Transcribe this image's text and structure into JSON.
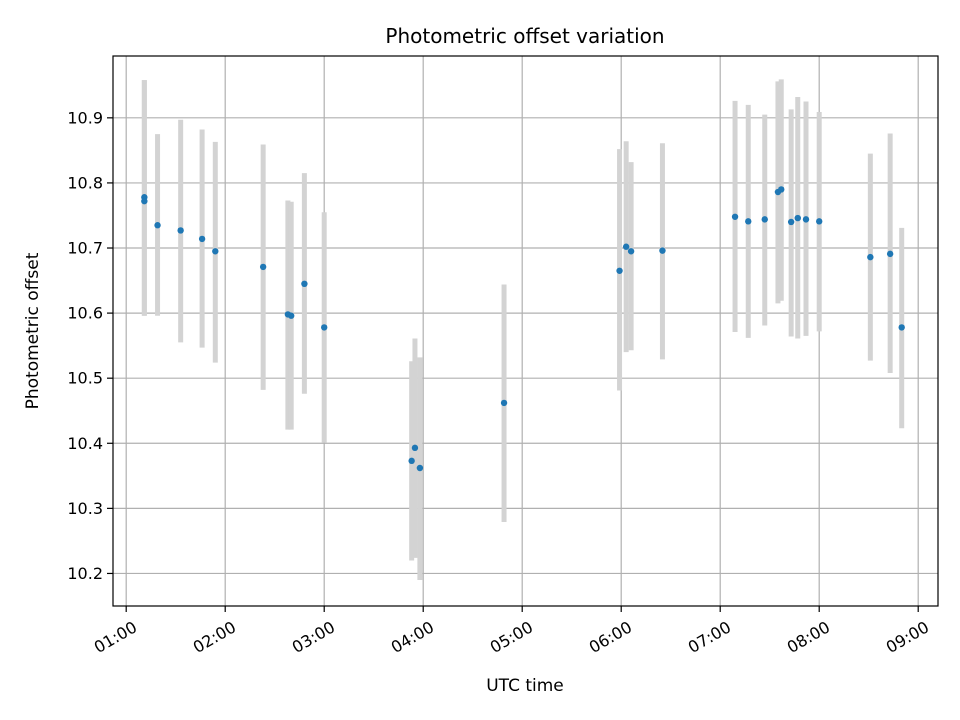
{
  "chart_data": {
    "type": "scatter",
    "title": "Photometric offset variation",
    "xlabel": "UTC time",
    "ylabel": "Photometric offset",
    "x_tick_labels": [
      "01:00",
      "02:00",
      "03:00",
      "04:00",
      "05:00",
      "06:00",
      "07:00",
      "08:00",
      "09:00"
    ],
    "y_tick_labels": [
      "10.2",
      "10.3",
      "10.4",
      "10.5",
      "10.6",
      "10.7",
      "10.8",
      "10.9"
    ],
    "x_ticks": [
      "01:00",
      "02:00",
      "03:00",
      "04:00",
      "05:00",
      "06:00",
      "07:00",
      "08:00",
      "09:00"
    ],
    "y_ticks": [
      10.2,
      10.3,
      10.4,
      10.5,
      10.6,
      10.7,
      10.8,
      10.9
    ],
    "xlim": [
      "00:52",
      "09:12"
    ],
    "ylim": [
      10.15,
      10.995
    ],
    "grid": true,
    "colors": {
      "point": "#1f77b4",
      "errorbar": "#d3d3d3",
      "grid": "#b0b0b0"
    },
    "series": [
      {
        "x": [
          "01:11",
          "01:11",
          "01:19",
          "01:33",
          "01:46",
          "01:54",
          "02:23",
          "02:38",
          "02:40",
          "02:48",
          "03:00",
          "03:53",
          "03:55",
          "03:58",
          "04:49",
          "05:59",
          "06:03",
          "06:06",
          "06:25",
          "07:09",
          "07:17",
          "07:27",
          "07:35",
          "07:37",
          "07:43",
          "07:47",
          "07:52",
          "08:00",
          "08:31",
          "08:43",
          "08:50"
        ],
        "y": [
          10.778,
          10.772,
          10.735,
          10.727,
          10.714,
          10.695,
          10.671,
          10.598,
          10.596,
          10.645,
          10.578,
          10.373,
          10.393,
          10.362,
          10.462,
          10.665,
          10.702,
          10.695,
          10.696,
          10.748,
          10.741,
          10.744,
          10.786,
          10.79,
          10.74,
          10.746,
          10.744,
          10.741,
          10.686,
          10.691,
          10.578
        ],
        "yerr_low": [
          10.596,
          10.596,
          10.596,
          10.555,
          10.547,
          10.524,
          10.482,
          10.421,
          10.421,
          10.476,
          10.401,
          10.22,
          10.224,
          10.19,
          10.279,
          10.481,
          10.54,
          10.543,
          10.529,
          10.571,
          10.562,
          10.581,
          10.615,
          10.619,
          10.564,
          10.561,
          10.565,
          10.572,
          10.527,
          10.508,
          10.423
        ],
        "yerr_high": [
          10.958,
          10.958,
          10.875,
          10.897,
          10.882,
          10.863,
          10.859,
          10.773,
          10.771,
          10.815,
          10.755,
          10.526,
          10.561,
          10.532,
          10.644,
          10.852,
          10.864,
          10.832,
          10.861,
          10.926,
          10.92,
          10.905,
          10.956,
          10.959,
          10.913,
          10.932,
          10.925,
          10.909,
          10.845,
          10.876,
          10.731
        ]
      }
    ]
  }
}
